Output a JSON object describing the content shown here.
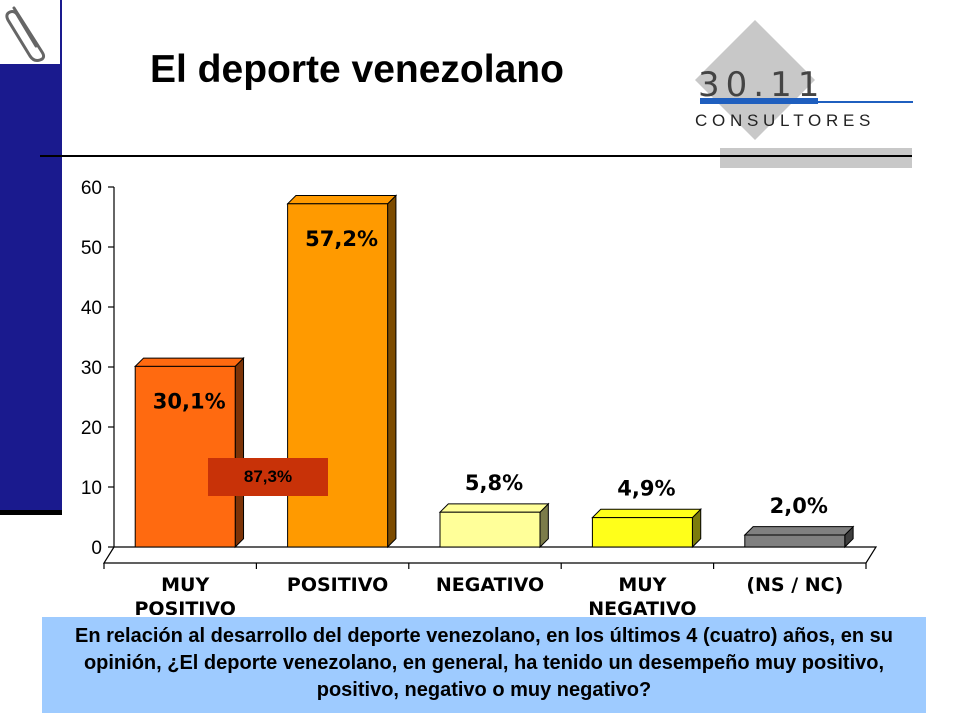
{
  "title": "El deporte venezolano",
  "logo": {
    "number": "30.11",
    "word": "C O N S U L T O R E S"
  },
  "question": "En relación al desarrollo del deporte venezolano, en los últimos 4 (cuatro) años, en su opinión, ¿El deporte venezolano, en general, ha tenido un desempeño muy positivo, positivo, negativo o muy negativo?",
  "combined_label": "87,3%",
  "chart_data": {
    "type": "bar",
    "categories": [
      "MUY\nPOSITIVO",
      "POSITIVO",
      "NEGATIVO",
      "MUY\nNEGATIVO",
      "(NS / NC)"
    ],
    "values": [
      30.1,
      57.2,
      5.8,
      4.9,
      2.0
    ],
    "data_labels": [
      "30,1%",
      "57,2%",
      "5,8%",
      "4,9%",
      "2,0%"
    ],
    "colors": [
      "#ff6a10",
      "#ff9a00",
      "#ffff99",
      "#ffff1a",
      "#808080"
    ],
    "ylim": [
      0,
      60
    ],
    "yticks": [
      0,
      10,
      20,
      30,
      40,
      50,
      60
    ],
    "title": "",
    "xlabel": "",
    "ylabel": ""
  }
}
